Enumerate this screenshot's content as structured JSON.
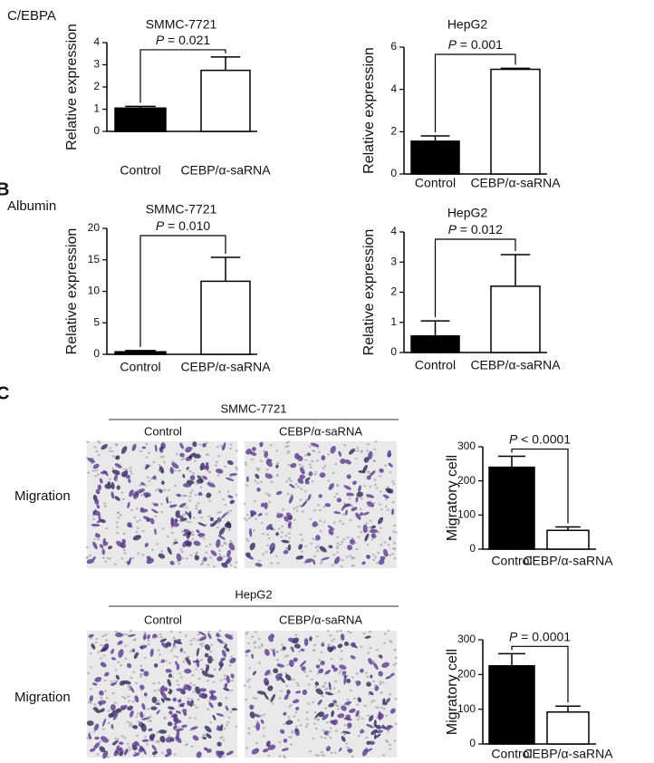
{
  "labels": {
    "gene_a": "C/EBPA",
    "panel_b": "B",
    "gene_b": "Albumin",
    "panel_c": "C"
  },
  "images": [
    {
      "title": "SMMC-7721",
      "columns": [
        "Control",
        "CEBP/α-saRNA"
      ],
      "row_label": "Migration"
    },
    {
      "title": "HepG2",
      "columns": [
        "Control",
        "CEBP/α-saRNA"
      ],
      "row_label": "Migration"
    }
  ],
  "chart_data": [
    {
      "type": "bar",
      "title": "SMMC-7721",
      "ylabel": "Relative expression",
      "annotation": "P = 0.021",
      "categories": [
        "Control",
        "CEBP/α-saRNA"
      ],
      "values": [
        1.05,
        2.75
      ],
      "errors": [
        0.08,
        0.6
      ],
      "colors": [
        "#000000",
        "#ffffff"
      ],
      "ylim": [
        0,
        4
      ],
      "yticks": [
        0,
        1,
        2,
        3,
        4
      ]
    },
    {
      "type": "bar",
      "title": "HepG2",
      "ylabel": "Relative expression",
      "annotation": "P = 0.001",
      "categories": [
        "Control",
        "CEBP/α-saRNA"
      ],
      "values": [
        1.55,
        4.95
      ],
      "errors": [
        0.25,
        0.05
      ],
      "colors": [
        "#000000",
        "#ffffff"
      ],
      "ylim": [
        0,
        6
      ],
      "yticks": [
        0,
        2,
        4,
        6
      ]
    },
    {
      "type": "bar",
      "title": "SMMC-7721",
      "ylabel": "Relative expression",
      "annotation": "P = 0.010",
      "categories": [
        "Control",
        "CEBP/α-saRNA"
      ],
      "values": [
        0.4,
        11.6
      ],
      "errors": [
        0.2,
        3.8
      ],
      "colors": [
        "#000000",
        "#ffffff"
      ],
      "ylim": [
        0,
        20
      ],
      "yticks": [
        0,
        5,
        10,
        15,
        20
      ]
    },
    {
      "type": "bar",
      "title": "HepG2",
      "ylabel": "Relative expression",
      "annotation": "P = 0.012",
      "categories": [
        "Control",
        "CEBP/α-saRNA"
      ],
      "values": [
        0.55,
        2.2
      ],
      "errors": [
        0.5,
        1.05
      ],
      "colors": [
        "#000000",
        "#ffffff"
      ],
      "ylim": [
        0,
        4
      ],
      "yticks": [
        0,
        1,
        2,
        3,
        4
      ]
    },
    {
      "type": "bar",
      "ylabel": "Migratory cell",
      "annotation": "P < 0.0001",
      "categories": [
        "Control",
        "CEBP/α-saRNA"
      ],
      "values": [
        240,
        55
      ],
      "errors": [
        32,
        10
      ],
      "colors": [
        "#000000",
        "#ffffff"
      ],
      "ylim": [
        0,
        300
      ],
      "yticks": [
        0,
        100,
        200,
        300
      ]
    },
    {
      "type": "bar",
      "ylabel": "Migratory cell",
      "annotation": "P = 0.0001",
      "categories": [
        "Control",
        "CEBP/α-saRNA"
      ],
      "values": [
        225,
        92
      ],
      "errors": [
        35,
        17
      ],
      "colors": [
        "#000000",
        "#ffffff"
      ],
      "ylim": [
        0,
        300
      ],
      "yticks": [
        0,
        100,
        200,
        300
      ]
    }
  ]
}
